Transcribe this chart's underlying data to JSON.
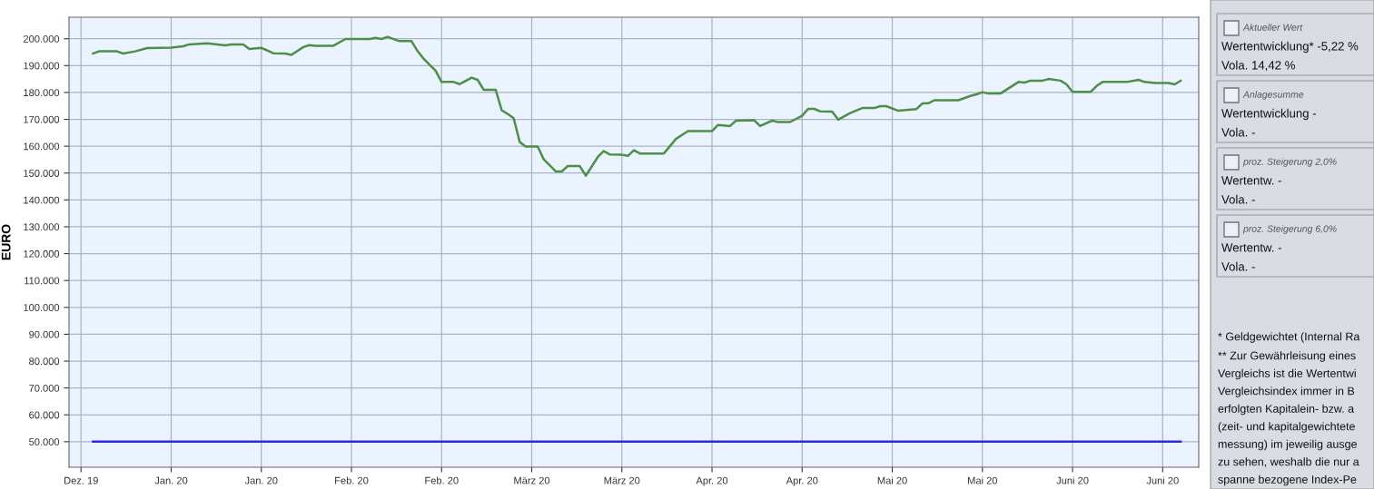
{
  "chart_data": [
    {
      "type": "line",
      "ylabel": "EURO",
      "x": [
        "2019-12-27",
        "2019-12-28",
        "2019-12-31",
        "2020-01-01",
        "2020-01-03",
        "2020-01-05",
        "2020-01-09",
        "2020-01-11",
        "2020-01-12",
        "2020-01-15",
        "2020-01-18",
        "2020-01-19",
        "2020-01-21",
        "2020-01-22",
        "2020-01-24",
        "2020-01-26",
        "2020-01-28",
        "2020-01-29",
        "2020-01-31",
        "2020-02-01",
        "2020-02-02",
        "2020-02-05",
        "2020-02-07",
        "2020-02-11",
        "2020-02-12",
        "2020-02-13",
        "2020-02-14",
        "2020-02-16",
        "2020-02-18",
        "2020-02-19",
        "2020-02-20",
        "2020-02-21",
        "2020-02-22",
        "2020-02-23",
        "2020-02-25",
        "2020-02-26",
        "2020-02-28",
        "2020-02-29",
        "2020-03-01",
        "2020-03-03",
        "2020-03-04",
        "2020-03-05",
        "2020-03-06",
        "2020-03-07",
        "2020-03-08",
        "2020-03-10",
        "2020-03-11",
        "2020-03-13",
        "2020-03-14",
        "2020-03-15",
        "2020-03-17",
        "2020-03-18",
        "2020-03-20",
        "2020-03-21",
        "2020-03-22",
        "2020-03-24",
        "2020-03-25",
        "2020-03-26",
        "2020-03-27",
        "2020-03-31",
        "2020-04-02",
        "2020-04-04",
        "2020-04-08",
        "2020-04-09",
        "2020-04-11",
        "2020-04-12",
        "2020-04-15",
        "2020-04-16",
        "2020-04-18",
        "2020-04-19",
        "2020-04-21",
        "2020-04-23",
        "2020-04-24",
        "2020-04-25",
        "2020-04-26",
        "2020-04-28",
        "2020-04-29",
        "2020-05-01",
        "2020-05-03",
        "2020-05-05",
        "2020-05-06",
        "2020-05-07",
        "2020-05-09",
        "2020-05-12",
        "2020-05-13",
        "2020-05-14",
        "2020-05-15",
        "2020-05-19",
        "2020-05-21",
        "2020-05-22",
        "2020-05-23",
        "2020-05-24",
        "2020-05-26",
        "2020-05-29",
        "2020-05-30",
        "2020-05-31",
        "2020-06-02",
        "2020-06-03",
        "2020-06-05",
        "2020-06-06",
        "2020-06-07",
        "2020-06-10",
        "2020-06-11",
        "2020-06-12",
        "2020-06-16",
        "2020-06-18",
        "2020-06-19",
        "2020-06-21",
        "2020-06-23",
        "2020-06-24",
        "2020-06-25"
      ],
      "series": [
        {
          "color": "#4e8f47",
          "values": [
            194500,
            195300,
            195300,
            194500,
            195300,
            196500,
            196700,
            197200,
            197900,
            198300,
            197500,
            197900,
            197900,
            196200,
            196600,
            194600,
            194500,
            194000,
            196900,
            197600,
            197400,
            197400,
            199900,
            199900,
            200300,
            199900,
            200700,
            199100,
            199100,
            195400,
            192600,
            190300,
            188100,
            183900,
            183900,
            183100,
            185500,
            184700,
            181000,
            181000,
            173400,
            172000,
            170400,
            161600,
            159900,
            159900,
            155100,
            150600,
            150600,
            152600,
            152600,
            149000,
            156000,
            158200,
            156900,
            156800,
            156400,
            158500,
            157300,
            157300,
            162700,
            165600,
            165600,
            167900,
            167500,
            169500,
            169700,
            167500,
            169500,
            169000,
            169000,
            171300,
            173900,
            173900,
            173000,
            172900,
            169900,
            172300,
            174200,
            174200,
            174900,
            174900,
            173200,
            173800,
            175900,
            176000,
            177100,
            177100,
            178700,
            179300,
            180100,
            179600,
            179600,
            183900,
            183700,
            184400,
            184400,
            185000,
            184400,
            183000,
            180200,
            180200,
            182400,
            183900,
            183900,
            184700,
            183900,
            183500,
            183500,
            183000,
            184400
          ]
        },
        {
          "color": "#2a2ae0",
          "x": [
            "2019-12-27",
            "2020-06-25"
          ],
          "values": [
            50000,
            50000
          ]
        }
      ],
      "xlim": [
        "2019-12-23",
        "2020-06-28"
      ],
      "xticks": [
        {
          "value": "2019-12-25",
          "label": "Dez. 19"
        },
        {
          "value": "2020-01-09",
          "label": "Jan. 20"
        },
        {
          "value": "2020-01-24",
          "label": "Jan. 20"
        },
        {
          "value": "2020-02-08",
          "label": "Feb. 20"
        },
        {
          "value": "2020-02-23",
          "label": "Feb. 20"
        },
        {
          "value": "2020-03-09",
          "label": "März 20"
        },
        {
          "value": "2020-03-24",
          "label": "März 20"
        },
        {
          "value": "2020-04-08",
          "label": "Apr. 20"
        },
        {
          "value": "2020-04-23",
          "label": "Apr. 20"
        },
        {
          "value": "2020-05-08",
          "label": "Mai 20"
        },
        {
          "value": "2020-05-23",
          "label": "Mai 20"
        },
        {
          "value": "2020-06-07",
          "label": "Juni 20"
        },
        {
          "value": "2020-06-22",
          "label": "Juni 20"
        }
      ],
      "ylim": [
        40500,
        208000
      ],
      "yticks": [
        {
          "value": 50000,
          "label": "50.000"
        },
        {
          "value": 60000,
          "label": "60.000"
        },
        {
          "value": 70000,
          "label": "70.000"
        },
        {
          "value": 80000,
          "label": "80.000"
        },
        {
          "value": 90000,
          "label": "90.000"
        },
        {
          "value": 100000,
          "label": "100.000"
        },
        {
          "value": 110000,
          "label": "110.000"
        },
        {
          "value": 120000,
          "label": "120.000"
        },
        {
          "value": 130000,
          "label": "130.000"
        },
        {
          "value": 140000,
          "label": "140.000"
        },
        {
          "value": 150000,
          "label": "150.000"
        },
        {
          "value": 160000,
          "label": "160.000"
        },
        {
          "value": 170000,
          "label": "170.000"
        },
        {
          "value": 180000,
          "label": "180.000"
        },
        {
          "value": 190000,
          "label": "190.000"
        },
        {
          "value": 200000,
          "label": "200.000"
        }
      ],
      "grid": true,
      "marker": "none",
      "line_style": "solid"
    },
    {
      "type": "other",
      "annotations": [
        "Aktueller Wert",
        "Wertentwicklung* -5,22 %",
        "Vola. 14,42 %",
        "Anlagesumme",
        "Wertentwicklung -",
        "Vola. -",
        "proz. Steigerung 2,0%",
        "Wertentw. -",
        "Vola. -",
        "proz. Steigerung 6,0%",
        "Wertentw. -",
        "Vola. -",
        "* Geldgewichtet (Internal Ra",
        "** Zur Gewährleisung eines",
        "Vergleichs ist die Wertentwi",
        "Vergleichsindex immer in B",
        "erfolgten Kapitalein- bzw. a",
        "(zeit- und kapitalgewichtete",
        "messung) im jeweilig ausge",
        "zu sehen, weshalb die nur a",
        "spanne bezogene Index-Pe"
      ]
    }
  ]
}
